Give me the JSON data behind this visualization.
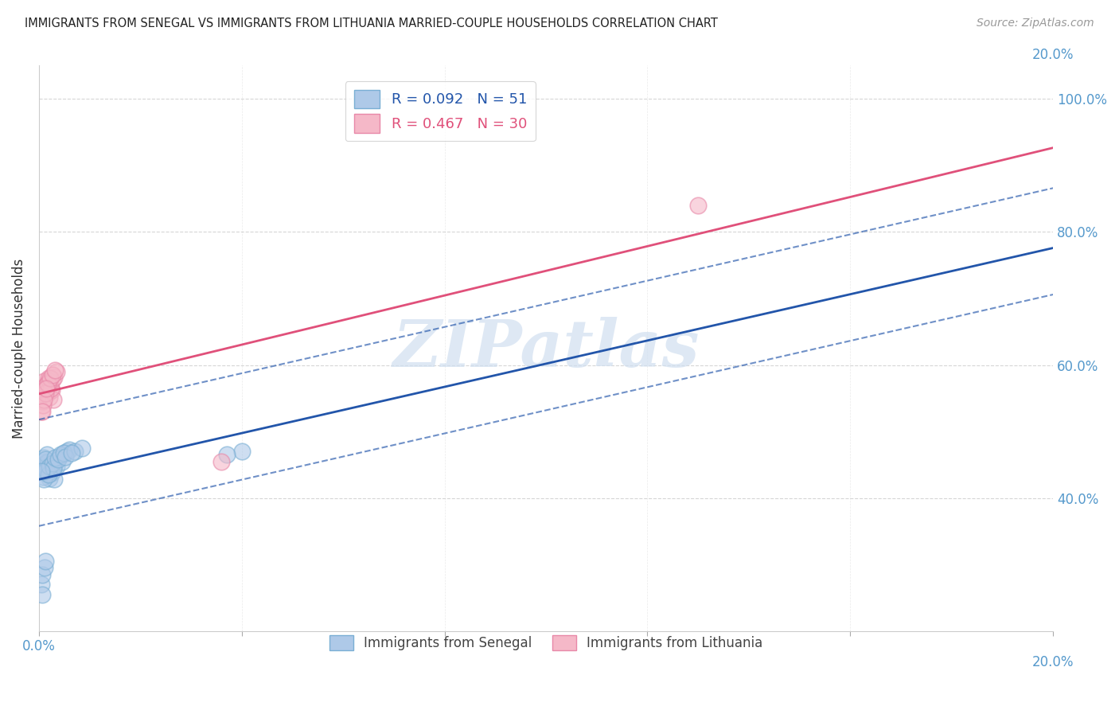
{
  "title": "IMMIGRANTS FROM SENEGAL VS IMMIGRANTS FROM LITHUANIA MARRIED-COUPLE HOUSEHOLDS CORRELATION CHART",
  "source": "Source: ZipAtlas.com",
  "ylabel": "Married-couple Households",
  "legend_label_blue": "Immigrants from Senegal",
  "legend_label_pink": "Immigrants from Lithuania",
  "R_blue": 0.092,
  "N_blue": 51,
  "R_pink": 0.467,
  "N_pink": 30,
  "xlim": [
    0.0,
    0.2
  ],
  "ylim": [
    0.2,
    1.05
  ],
  "ytick_vals": [
    0.4,
    0.6,
    0.8,
    1.0
  ],
  "blue_fill_color": "#aec9e8",
  "blue_edge_color": "#7aafd4",
  "blue_line_color": "#2255aa",
  "pink_fill_color": "#f5b8c8",
  "pink_edge_color": "#e888a8",
  "pink_line_color": "#e0507a",
  "tick_label_color": "#5599cc",
  "axis_label_color": "#333333",
  "grid_color": "#cccccc",
  "background_color": "#ffffff",
  "watermark_text": "ZIPatlas",
  "watermark_color": "#d0dff0",
  "blue_x": [
    0.0008,
    0.001,
    0.0012,
    0.0015,
    0.0018,
    0.002,
    0.0022,
    0.0025,
    0.0028,
    0.003,
    0.001,
    0.0013,
    0.0016,
    0.0018,
    0.002,
    0.0023,
    0.0025,
    0.0015,
    0.0017,
    0.0012,
    0.003,
    0.0035,
    0.004,
    0.0045,
    0.005,
    0.0055,
    0.006,
    0.0008,
    0.0009,
    0.0011,
    0.0014,
    0.0019,
    0.0021,
    0.0026,
    0.0029,
    0.0032,
    0.0038,
    0.0042,
    0.0048,
    0.0052,
    0.007,
    0.0085,
    0.0065,
    0.0005,
    0.0007,
    0.0006,
    0.0011,
    0.0013,
    0.04,
    0.037,
    0.0005
  ],
  "blue_y": [
    0.455,
    0.445,
    0.45,
    0.44,
    0.435,
    0.43,
    0.448,
    0.438,
    0.442,
    0.428,
    0.46,
    0.452,
    0.448,
    0.455,
    0.442,
    0.45,
    0.445,
    0.465,
    0.438,
    0.458,
    0.45,
    0.448,
    0.462,
    0.455,
    0.468,
    0.47,
    0.472,
    0.432,
    0.428,
    0.44,
    0.442,
    0.435,
    0.448,
    0.452,
    0.445,
    0.46,
    0.458,
    0.465,
    0.468,
    0.462,
    0.47,
    0.475,
    0.468,
    0.27,
    0.285,
    0.255,
    0.295,
    0.305,
    0.47,
    0.465,
    0.44
  ],
  "pink_x": [
    0.0005,
    0.0008,
    0.001,
    0.0012,
    0.0015,
    0.0018,
    0.002,
    0.0022,
    0.0025,
    0.0028,
    0.001,
    0.0013,
    0.0016,
    0.0019,
    0.0021,
    0.0023,
    0.0026,
    0.003,
    0.0035,
    0.0008,
    0.0012,
    0.0017,
    0.0022,
    0.0027,
    0.0032,
    0.0009,
    0.0014,
    0.036,
    0.13,
    0.0006
  ],
  "pink_y": [
    0.53,
    0.545,
    0.555,
    0.56,
    0.565,
    0.558,
    0.552,
    0.57,
    0.562,
    0.548,
    0.575,
    0.568,
    0.572,
    0.58,
    0.575,
    0.565,
    0.578,
    0.582,
    0.59,
    0.54,
    0.558,
    0.572,
    0.58,
    0.585,
    0.592,
    0.548,
    0.565,
    0.455,
    0.84,
    0.53
  ]
}
